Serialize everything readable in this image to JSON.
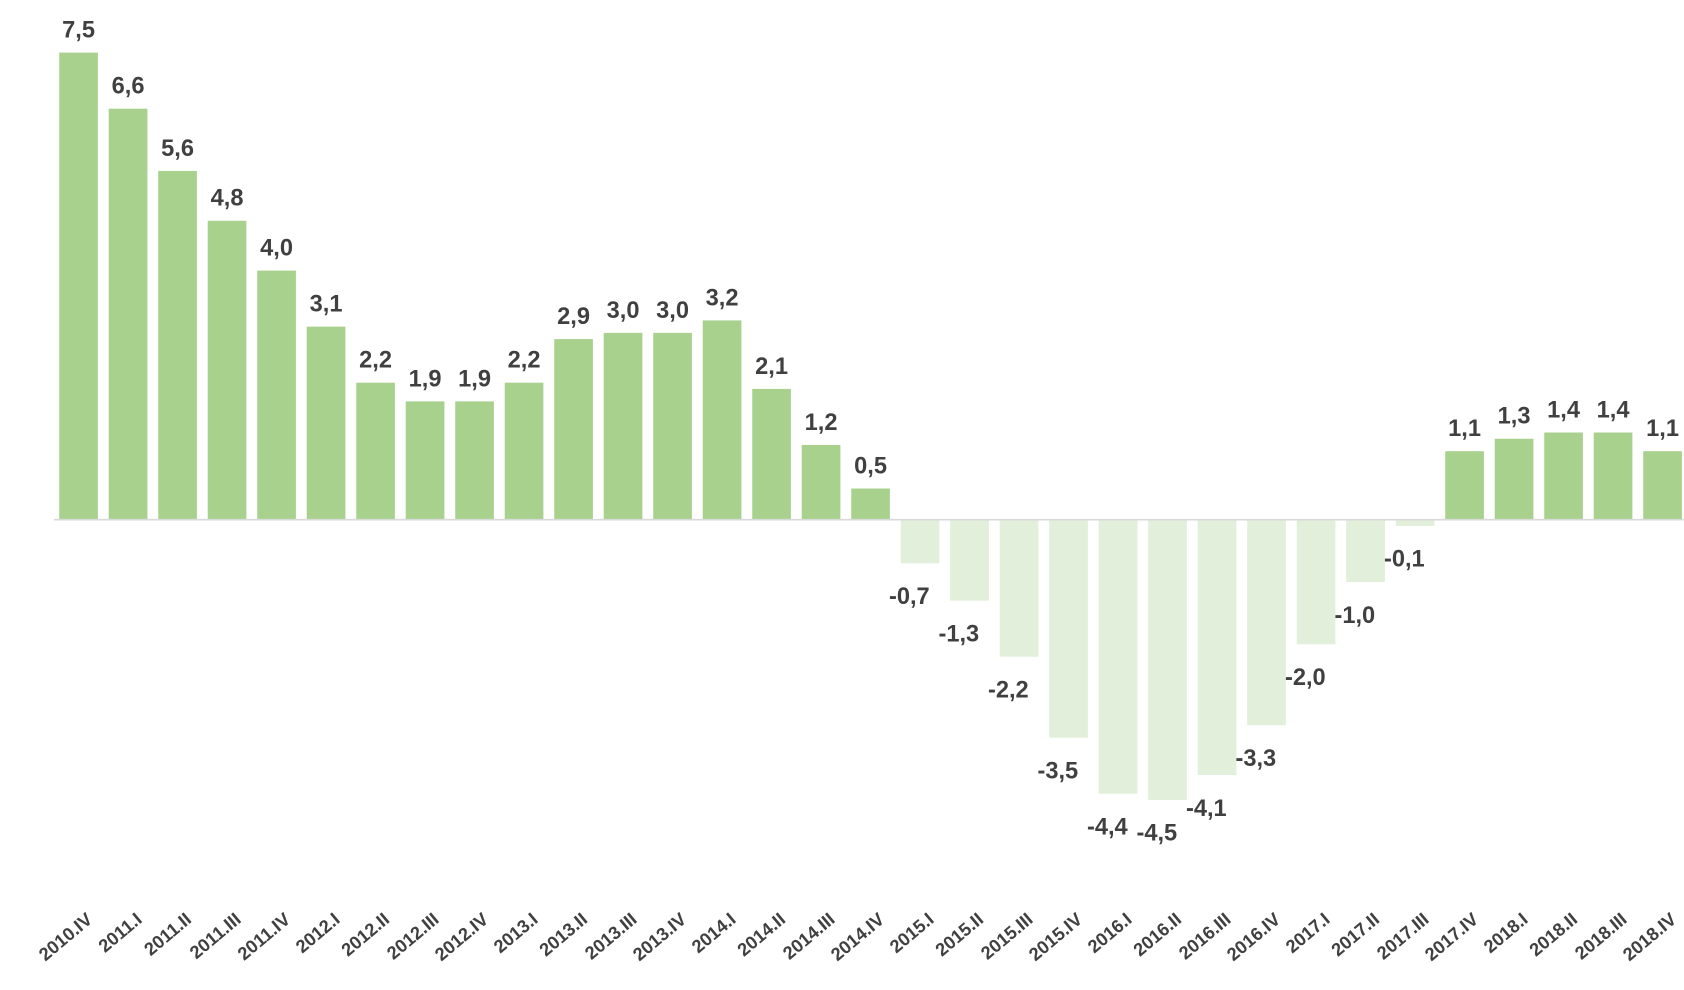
{
  "chart_data": {
    "type": "bar",
    "categories": [
      "2010.IV",
      "2011.I",
      "2011.II",
      "2011.III",
      "2011.IV",
      "2012.I",
      "2012.II",
      "2012.III",
      "2012.IV",
      "2013.I",
      "2013.II",
      "2013.III",
      "2013.IV",
      "2014.I",
      "2014.II",
      "2014.III",
      "2014.IV",
      "2015.I",
      "2015.II",
      "2015.III",
      "2015.IV",
      "2016.I",
      "2016.II",
      "2016.III",
      "2016.IV",
      "2017.I",
      "2017.II",
      "2017.III",
      "2017.IV",
      "2018.I",
      "2018.II",
      "2018.III",
      "2018.IV"
    ],
    "values": [
      7.5,
      6.6,
      5.6,
      4.8,
      4.0,
      3.1,
      2.2,
      1.9,
      1.9,
      2.2,
      2.9,
      3.0,
      3.0,
      3.2,
      2.1,
      1.2,
      0.5,
      -0.7,
      -1.3,
      -2.2,
      -3.5,
      -4.4,
      -4.5,
      -4.1,
      -3.3,
      -2.0,
      -1.0,
      -0.1,
      1.1,
      1.3,
      1.4,
      1.4,
      1.1
    ],
    "value_labels": [
      "7,5",
      "6,6",
      "5,6",
      "4,8",
      "4,0",
      "3,1",
      "2,2",
      "1,9",
      "1,9",
      "2,2",
      "2,9",
      "3,0",
      "3,0",
      "3,2",
      "2,1",
      "1,2",
      "0,5",
      "-0,7",
      "-1,3",
      "-2,2",
      "-3,5",
      "-4,4",
      "-4,5",
      "-4,1",
      "-3,3",
      "-2,0",
      "-1,0",
      "-0,1",
      "1,1",
      "1,3",
      "1,4",
      "1,4",
      "1,1"
    ],
    "color": "#a9d18e",
    "negative_color": "#e2efda"
  }
}
